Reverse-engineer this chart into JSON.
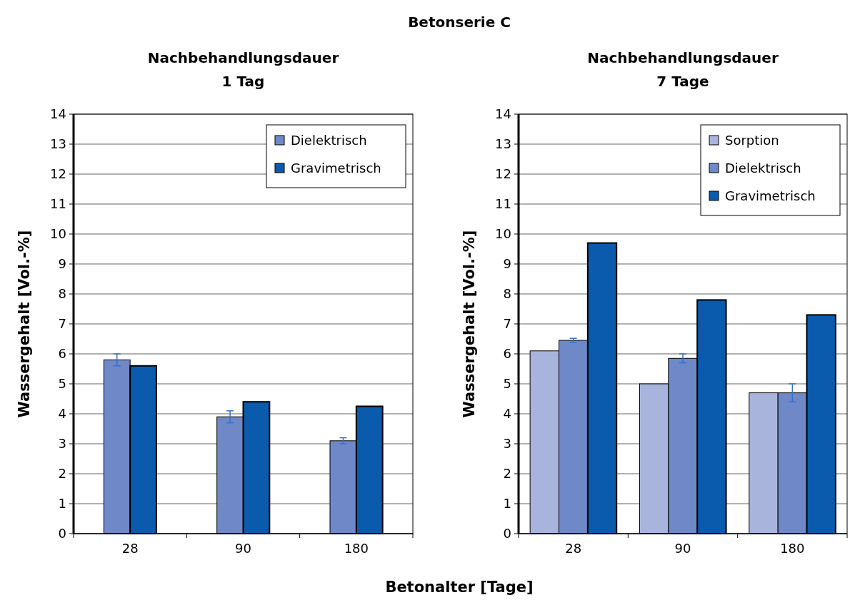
{
  "chart_data": [
    {
      "type": "bar",
      "title": "Nachbehandlungsdauer\n1 Tag",
      "annotations": [
        "Betonserie C"
      ],
      "xlabel": "Betonalter [Tage]",
      "ylabel": "Wassergehalt [Vol.-%]",
      "categories": [
        "28",
        "90",
        "180"
      ],
      "series": [
        {
          "name": "Dielektrisch",
          "color": "#6f88c8",
          "values": [
            5.8,
            3.9,
            3.1
          ],
          "errors": [
            0.2,
            0.2,
            0.1
          ]
        },
        {
          "name": "Gravimetrisch",
          "color": "#0a5aad",
          "values": [
            5.6,
            4.4,
            4.25
          ]
        }
      ],
      "ylim": [
        0,
        14
      ],
      "yticks": [
        0,
        1,
        2,
        3,
        4,
        5,
        6,
        7,
        8,
        9,
        10,
        11,
        12,
        13,
        14
      ],
      "grid": "y",
      "legend": "top right"
    },
    {
      "type": "bar",
      "title": "Nachbehandlungsdauer\n7 Tage",
      "ylabel": "Wassergehalt [Vol.-%]",
      "categories": [
        "28",
        "90",
        "180"
      ],
      "series": [
        {
          "name": "Sorption",
          "color": "#a9b4dd",
          "values": [
            6.1,
            5.0,
            4.7
          ]
        },
        {
          "name": "Dielektrisch",
          "color": "#6f88c8",
          "values": [
            6.45,
            5.85,
            4.7
          ],
          "errors": [
            0.07,
            0.15,
            0.3
          ]
        },
        {
          "name": "Gravimetrisch",
          "color": "#0a5aad",
          "values": [
            9.7,
            7.8,
            7.3
          ]
        }
      ],
      "ylim": [
        0,
        14
      ],
      "yticks": [
        0,
        1,
        2,
        3,
        4,
        5,
        6,
        7,
        8,
        9,
        10,
        11,
        12,
        13,
        14
      ],
      "grid": "y",
      "legend": "top right"
    }
  ]
}
